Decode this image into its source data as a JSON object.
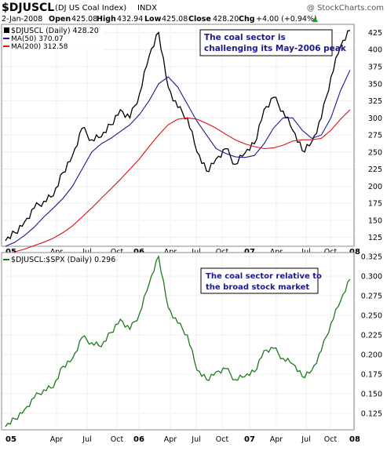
{
  "header": {
    "symbol": "$DJUSCL",
    "name": "(DJ US Coal Index)",
    "exchange": "INDX",
    "watermark": "@ StockCharts.com",
    "date": "2-Jan-2008",
    "open_label": "Open",
    "open": "425.08",
    "high_label": "High",
    "high": "432.94",
    "low_label": "Low",
    "low": "425.08",
    "close_label": "Close",
    "close": "428.20",
    "chg_label": "Chg",
    "chg": "+4.00 (+0.94%)",
    "chg_arrow": "▲"
  },
  "top_panel": {
    "legend_main": "$DJUSCL (Daily) 428.20",
    "legend_ma50": "MA(50) 370.07",
    "legend_ma200": "MA(200) 312.58",
    "annotation": [
      "The coal sector is",
      "challenging its May-2006 peak"
    ],
    "yticks": [
      "425",
      "400",
      "375",
      "350",
      "325",
      "300",
      "275",
      "250",
      "225",
      "200",
      "175",
      "150",
      "125"
    ]
  },
  "bottom_panel": {
    "legend_main": "$DJUSCL:$SPX (Daily) 0.296",
    "annotation": [
      "The coal sector relative to",
      "the broad stock market"
    ],
    "yticks": [
      "0.325",
      "0.300",
      "0.275",
      "0.250",
      "0.225",
      "0.200",
      "0.175",
      "0.150",
      "0.125"
    ]
  },
  "x_labels": [
    "05",
    "Apr",
    "Jul",
    "Oct",
    "06",
    "Apr",
    "Jul",
    "Oct",
    "07",
    "Apr",
    "Jul",
    "Oct",
    "08"
  ],
  "colors": {
    "price": "#000000",
    "ma50": "#1a1a8c",
    "ma200": "#dd1111",
    "ratio": "#1e7a1e",
    "annotation_text": "#1a1a8c",
    "grid": "#cccccc",
    "up_arrow": "#1e9e1e"
  },
  "chart_data": [
    {
      "type": "line",
      "title": "$DJUSCL (DJ US Coal Index) INDX",
      "x": [
        "Jan-2005",
        "Feb-2005",
        "Mar-2005",
        "Apr-2005",
        "May-2005",
        "Jun-2005",
        "Jul-2005",
        "Aug-2005",
        "Sep-2005",
        "Oct-2005",
        "Nov-2005",
        "Dec-2005",
        "Jan-2006",
        "Feb-2006",
        "Mar-2006",
        "Apr-2006",
        "May-2006",
        "Jun-2006",
        "Jul-2006",
        "Aug-2006",
        "Sep-2006",
        "Oct-2006",
        "Nov-2006",
        "Dec-2006",
        "Jan-2007",
        "Feb-2007",
        "Mar-2007",
        "Apr-2007",
        "May-2007",
        "Jun-2007",
        "Jul-2007",
        "Aug-2007",
        "Sep-2007",
        "Oct-2007",
        "Nov-2007",
        "Dec-2007",
        "Jan-2008"
      ],
      "series": [
        {
          "name": "$DJUSCL (Daily)",
          "values": [
            120,
            132,
            148,
            168,
            178,
            186,
            220,
            245,
            285,
            268,
            272,
            290,
            312,
            300,
            335,
            390,
            425,
            345,
            315,
            300,
            250,
            222,
            240,
            255,
            232,
            248,
            262,
            312,
            330,
            310,
            282,
            252,
            265,
            300,
            360,
            405,
            428
          ]
        },
        {
          "name": "MA(50)",
          "values": [
            112,
            118,
            128,
            140,
            155,
            168,
            182,
            200,
            225,
            250,
            262,
            270,
            280,
            290,
            305,
            325,
            350,
            360,
            345,
            320,
            295,
            275,
            255,
            248,
            243,
            242,
            245,
            262,
            285,
            300,
            300,
            282,
            270,
            275,
            300,
            340,
            370
          ]
        },
        {
          "name": "MA(200)",
          "values": [
            100,
            104,
            108,
            113,
            118,
            124,
            132,
            142,
            155,
            168,
            182,
            196,
            210,
            225,
            240,
            258,
            275,
            290,
            298,
            300,
            298,
            292,
            285,
            276,
            268,
            262,
            258,
            255,
            256,
            260,
            266,
            268,
            268,
            270,
            282,
            298,
            312
          ]
        }
      ],
      "ylim": [
        112,
        437
      ],
      "yticks": [
        125,
        150,
        175,
        200,
        225,
        250,
        275,
        300,
        325,
        350,
        375,
        400,
        425
      ],
      "grid": true,
      "legend": "top-left"
    },
    {
      "type": "line",
      "title": "$DJUSCL:$SPX (Daily)",
      "x": [
        "Jan-2005",
        "Feb-2005",
        "Mar-2005",
        "Apr-2005",
        "May-2005",
        "Jun-2005",
        "Jul-2005",
        "Aug-2005",
        "Sep-2005",
        "Oct-2005",
        "Nov-2005",
        "Dec-2005",
        "Jan-2006",
        "Feb-2006",
        "Mar-2006",
        "Apr-2006",
        "May-2006",
        "Jun-2006",
        "Jul-2006",
        "Aug-2006",
        "Sep-2006",
        "Oct-2006",
        "Nov-2006",
        "Dec-2006",
        "Jan-2007",
        "Feb-2007",
        "Mar-2007",
        "Apr-2007",
        "May-2007",
        "Jun-2007",
        "Jul-2007",
        "Aug-2007",
        "Sep-2007",
        "Oct-2007",
        "Nov-2007",
        "Dec-2007",
        "Jan-2008"
      ],
      "series": [
        {
          "name": "$DJUSCL:$SPX (Daily)",
          "values": [
            0.108,
            0.118,
            0.13,
            0.145,
            0.155,
            0.158,
            0.185,
            0.195,
            0.222,
            0.215,
            0.21,
            0.228,
            0.245,
            0.232,
            0.252,
            0.29,
            0.325,
            0.26,
            0.24,
            0.225,
            0.18,
            0.168,
            0.178,
            0.182,
            0.168,
            0.172,
            0.178,
            0.205,
            0.208,
            0.195,
            0.188,
            0.172,
            0.18,
            0.205,
            0.24,
            0.268,
            0.296
          ]
        }
      ],
      "ylim": [
        0.104,
        0.33
      ],
      "yticks": [
        0.125,
        0.15,
        0.175,
        0.2,
        0.225,
        0.25,
        0.275,
        0.3,
        0.325
      ],
      "grid": true,
      "legend": "top-left"
    }
  ]
}
